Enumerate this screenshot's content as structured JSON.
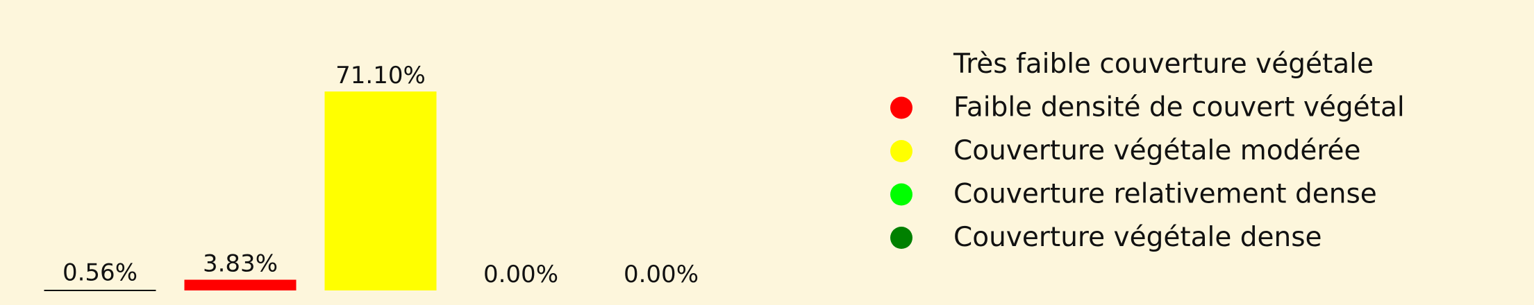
{
  "chart_data": {
    "type": "bar",
    "categories": [
      "Très faible couverture végétale",
      "Faible densité de couvert végétal",
      "Couverture végétale modérée",
      "Couverture relativement dense",
      "Couverture végétale dense"
    ],
    "values": [
      0.56,
      3.83,
      71.1,
      0.0,
      0.0
    ],
    "value_labels": [
      "0.56%",
      "3.83%",
      "71.10%",
      "0.00%",
      "0.00%"
    ],
    "colors": [
      "#fdf6dc",
      "#ff0000",
      "#ffff00",
      "#00ff00",
      "#008000"
    ],
    "title": "",
    "xlabel": "",
    "ylabel": "",
    "ylim": [
      0,
      75
    ],
    "grid": false,
    "legend_position": "right"
  }
}
